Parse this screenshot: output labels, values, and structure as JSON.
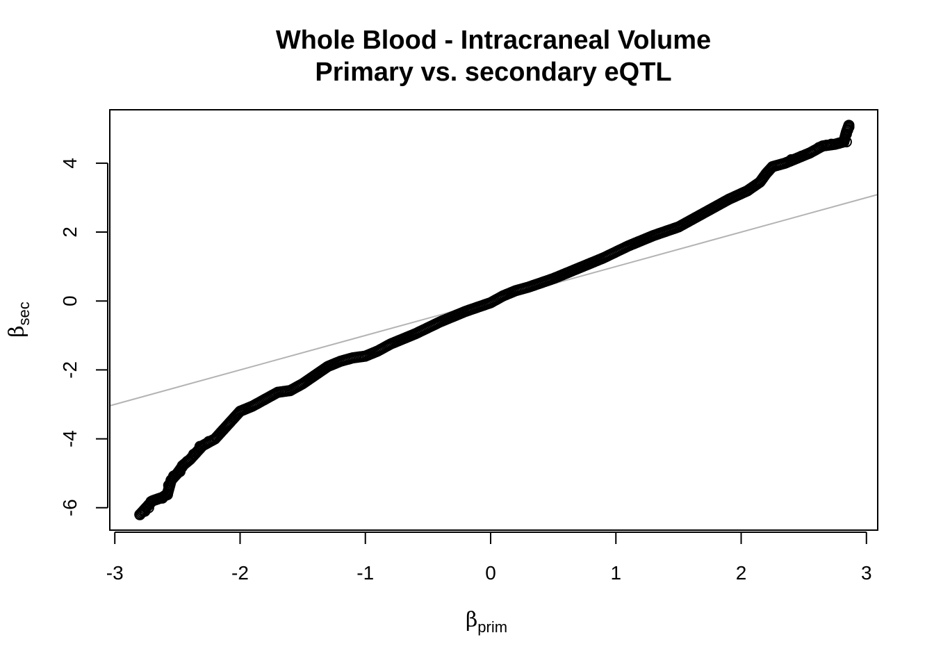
{
  "chart_data": {
    "type": "scatter",
    "title": "Whole Blood - Intracraneal Volume",
    "subtitle": "Primary vs. secondary eQTL",
    "xlabel": {
      "symbol": "β",
      "subscript": "prim"
    },
    "ylabel": {
      "symbol": "β",
      "subscript": "sec"
    },
    "xlim": [
      -3.04,
      3.09
    ],
    "ylim": [
      -6.65,
      5.55
    ],
    "xticks": [
      -3,
      -2,
      -1,
      0,
      1,
      2,
      3
    ],
    "xtick_labels": [
      "-3",
      "-2",
      "-1",
      "0",
      "1",
      "2",
      "3"
    ],
    "yticks": [
      -6,
      -4,
      -2,
      0,
      2,
      4
    ],
    "ytick_labels": [
      "-6",
      "-4",
      "-2",
      "0",
      "2",
      "4"
    ],
    "grid": false,
    "legend": "none",
    "reference_line": {
      "intercept": 0,
      "slope": 1,
      "color": "#b3b3b3"
    },
    "point_color": "#000000",
    "marker": "open-circle",
    "curve_knots": [
      [
        -2.8,
        -6.2
      ],
      [
        -2.75,
        -6.0
      ],
      [
        -2.7,
        -5.8
      ],
      [
        -2.62,
        -5.7
      ],
      [
        -2.58,
        -5.6
      ],
      [
        -2.55,
        -5.2
      ],
      [
        -2.5,
        -5.0
      ],
      [
        -2.45,
        -4.75
      ],
      [
        -2.4,
        -4.6
      ],
      [
        -2.35,
        -4.4
      ],
      [
        -2.3,
        -4.2
      ],
      [
        -2.2,
        -4.0
      ],
      [
        -2.1,
        -3.6
      ],
      [
        -2.05,
        -3.4
      ],
      [
        -2.0,
        -3.2
      ],
      [
        -1.9,
        -3.05
      ],
      [
        -1.8,
        -2.85
      ],
      [
        -1.7,
        -2.65
      ],
      [
        -1.6,
        -2.6
      ],
      [
        -1.5,
        -2.4
      ],
      [
        -1.4,
        -2.15
      ],
      [
        -1.3,
        -1.9
      ],
      [
        -1.2,
        -1.75
      ],
      [
        -1.1,
        -1.65
      ],
      [
        -1.0,
        -1.6
      ],
      [
        -0.9,
        -1.45
      ],
      [
        -0.8,
        -1.25
      ],
      [
        -0.6,
        -0.95
      ],
      [
        -0.4,
        -0.6
      ],
      [
        -0.2,
        -0.3
      ],
      [
        0.0,
        -0.05
      ],
      [
        0.1,
        0.15
      ],
      [
        0.2,
        0.3
      ],
      [
        0.3,
        0.4
      ],
      [
        0.5,
        0.65
      ],
      [
        0.7,
        0.95
      ],
      [
        0.9,
        1.25
      ],
      [
        1.1,
        1.6
      ],
      [
        1.3,
        1.9
      ],
      [
        1.5,
        2.15
      ],
      [
        1.7,
        2.55
      ],
      [
        1.9,
        2.95
      ],
      [
        2.05,
        3.2
      ],
      [
        2.15,
        3.45
      ],
      [
        2.2,
        3.7
      ],
      [
        2.25,
        3.9
      ],
      [
        2.35,
        4.0
      ],
      [
        2.45,
        4.15
      ],
      [
        2.55,
        4.3
      ],
      [
        2.65,
        4.5
      ],
      [
        2.75,
        4.55
      ],
      [
        2.82,
        4.62
      ],
      [
        2.84,
        4.9
      ],
      [
        2.86,
        5.1
      ]
    ],
    "tail_points": [
      {
        "x": -2.8,
        "y": -6.2
      },
      {
        "x": -2.76,
        "y": -6.1
      },
      {
        "x": -2.73,
        "y": -6.0
      },
      {
        "x": -2.71,
        "y": -5.82
      },
      {
        "x": -2.66,
        "y": -5.75
      },
      {
        "x": -2.62,
        "y": -5.72
      },
      {
        "x": -2.58,
        "y": -5.62
      },
      {
        "x": -2.57,
        "y": -5.35
      },
      {
        "x": -2.55,
        "y": -5.2
      },
      {
        "x": -2.53,
        "y": -5.08
      },
      {
        "x": -2.48,
        "y": -4.95
      },
      {
        "x": -2.46,
        "y": -4.78
      },
      {
        "x": -2.42,
        "y": -4.65
      },
      {
        "x": -2.37,
        "y": -4.45
      },
      {
        "x": -2.32,
        "y": -4.22
      },
      {
        "x": -2.25,
        "y": -4.08
      },
      {
        "x": 2.4,
        "y": 4.1
      },
      {
        "x": 2.48,
        "y": 4.2
      },
      {
        "x": 2.55,
        "y": 4.3
      },
      {
        "x": 2.62,
        "y": 4.45
      },
      {
        "x": 2.68,
        "y": 4.52
      },
      {
        "x": 2.72,
        "y": 4.55
      },
      {
        "x": 2.78,
        "y": 4.58
      },
      {
        "x": 2.84,
        "y": 4.62
      },
      {
        "x": 2.84,
        "y": 4.85
      },
      {
        "x": 2.85,
        "y": 4.96
      },
      {
        "x": 2.86,
        "y": 5.05
      }
    ]
  }
}
